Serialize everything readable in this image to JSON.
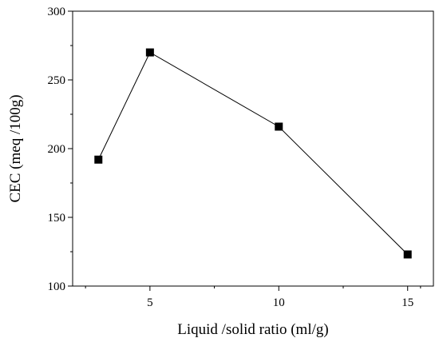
{
  "chart_data": {
    "type": "line",
    "xlabel": "Liquid /solid ratio (ml/g)",
    "ylabel": "CEC (meq /100g)",
    "xlim": [
      2,
      16
    ],
    "ylim": [
      100,
      300
    ],
    "x_ticks": [
      5,
      10,
      15
    ],
    "y_ticks": [
      100,
      150,
      200,
      250,
      300
    ],
    "x_ticks_minor": [
      2.5,
      7.5,
      12.5,
      15.5
    ],
    "y_ticks_minor": [
      125,
      175,
      225,
      275
    ],
    "x_tick_labels": [
      "5",
      "10",
      "15"
    ],
    "y_tick_labels": [
      "100",
      "150",
      "200",
      "250",
      "300"
    ],
    "grid": false,
    "marker": "square",
    "color": "#000000",
    "series": [
      {
        "x": [
          3,
          5,
          10,
          15
        ],
        "y": [
          192,
          270,
          216,
          123
        ]
      }
    ]
  }
}
